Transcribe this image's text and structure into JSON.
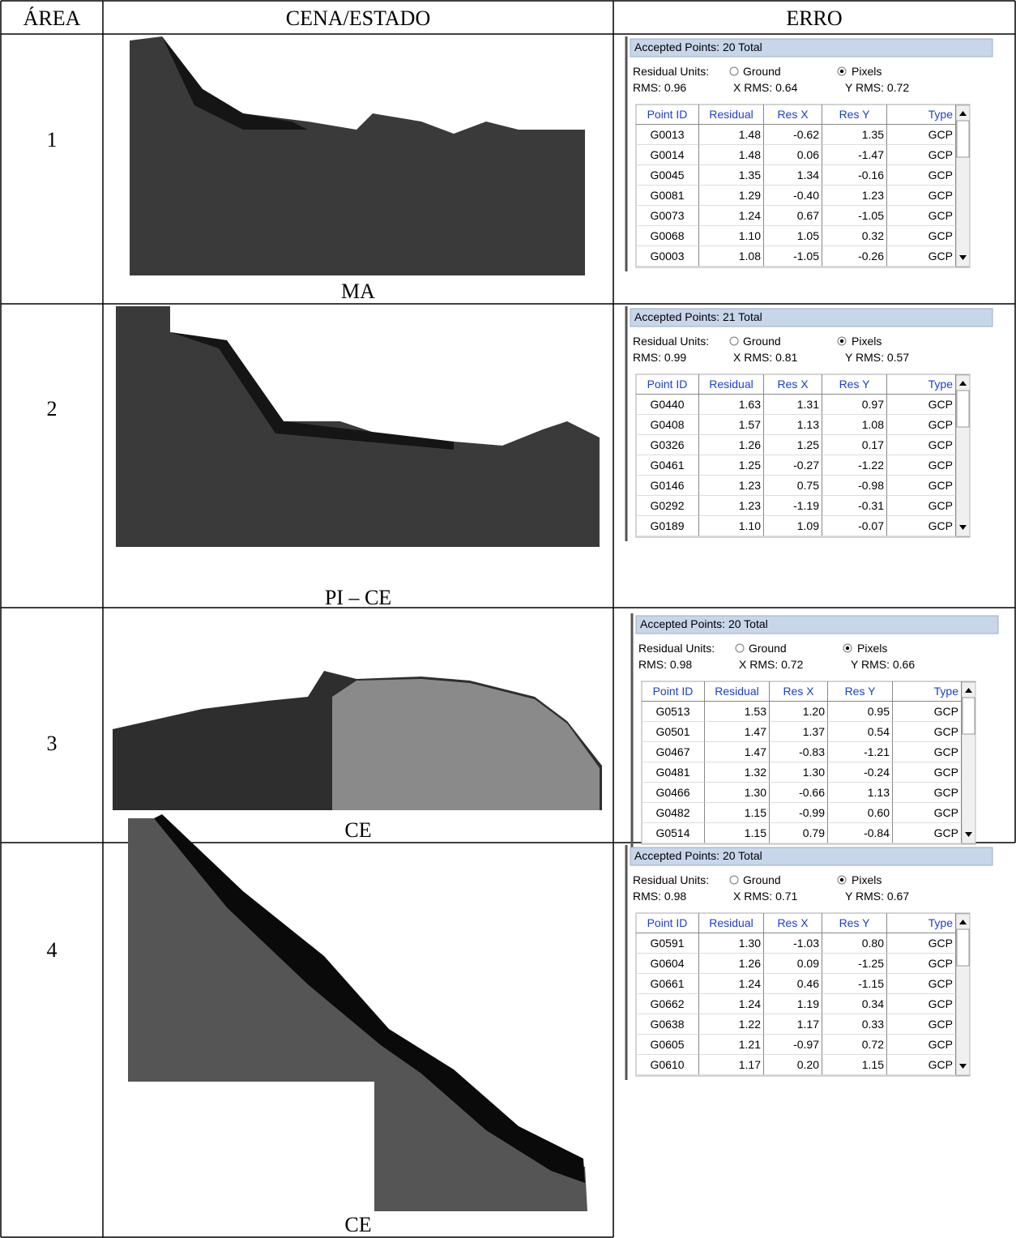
{
  "header": {
    "columns": [
      "ÁREA",
      "CENA/ESTADO",
      "ERRO"
    ]
  },
  "panel_labels": {
    "residual_units": "Residual Units:",
    "ground": "Ground",
    "pixels": "Pixels",
    "columns": [
      "Point ID",
      "Residual",
      "Res X",
      "Res Y",
      "Type"
    ]
  },
  "rows": [
    {
      "area": "1",
      "state": "MA",
      "panel": {
        "accepted": "Accepted Points: 20 Total",
        "rms": "RMS: 0.96",
        "x_rms": "X RMS: 0.64",
        "y_rms": "Y RMS: 0.72",
        "points": [
          [
            "G0013",
            "1.48",
            "-0.62",
            "1.35",
            "GCP"
          ],
          [
            "G0014",
            "1.48",
            "0.06",
            "-1.47",
            "GCP"
          ],
          [
            "G0045",
            "1.35",
            "1.34",
            "-0.16",
            "GCP"
          ],
          [
            "G0081",
            "1.29",
            "-0.40",
            "1.23",
            "GCP"
          ],
          [
            "G0073",
            "1.24",
            "0.67",
            "-1.05",
            "GCP"
          ],
          [
            "G0068",
            "1.10",
            "1.05",
            "0.32",
            "GCP"
          ],
          [
            "G0003",
            "1.08",
            "-1.05",
            "-0.26",
            "GCP"
          ]
        ]
      }
    },
    {
      "area": "2",
      "state": "PI – CE",
      "panel": {
        "accepted": "Accepted Points: 21 Total",
        "rms": "RMS: 0.99",
        "x_rms": "X RMS: 0.81",
        "y_rms": "Y RMS: 0.57",
        "points": [
          [
            "G0440",
            "1.63",
            "1.31",
            "0.97",
            "GCP"
          ],
          [
            "G0408",
            "1.57",
            "1.13",
            "1.08",
            "GCP"
          ],
          [
            "G0326",
            "1.26",
            "1.25",
            "0.17",
            "GCP"
          ],
          [
            "G0461",
            "1.25",
            "-0.27",
            "-1.22",
            "GCP"
          ],
          [
            "G0146",
            "1.23",
            "0.75",
            "-0.98",
            "GCP"
          ],
          [
            "G0292",
            "1.23",
            "-1.19",
            "-0.31",
            "GCP"
          ],
          [
            "G0189",
            "1.10",
            "1.09",
            "-0.07",
            "GCP"
          ]
        ]
      }
    },
    {
      "area": "3",
      "state": "CE",
      "panel": {
        "accepted": "Accepted Points: 20 Total",
        "rms": "RMS: 0.98",
        "x_rms": "X RMS: 0.72",
        "y_rms": "Y RMS: 0.66",
        "points": [
          [
            "G0513",
            "1.53",
            "1.20",
            "0.95",
            "GCP"
          ],
          [
            "G0501",
            "1.47",
            "1.37",
            "0.54",
            "GCP"
          ],
          [
            "G0467",
            "1.47",
            "-0.83",
            "-1.21",
            "GCP"
          ],
          [
            "G0481",
            "1.32",
            "1.30",
            "-0.24",
            "GCP"
          ],
          [
            "G0466",
            "1.30",
            "-0.66",
            "1.13",
            "GCP"
          ],
          [
            "G0482",
            "1.15",
            "-0.99",
            "0.60",
            "GCP"
          ],
          [
            "G0514",
            "1.15",
            "0.79",
            "-0.84",
            "GCP"
          ]
        ]
      }
    },
    {
      "area": "4",
      "state": "CE",
      "panel": {
        "accepted": "Accepted Points: 20 Total",
        "rms": "RMS: 0.98",
        "x_rms": "X RMS: 0.71",
        "y_rms": "Y RMS: 0.67",
        "points": [
          [
            "G0591",
            "1.30",
            "-1.03",
            "0.80",
            "GCP"
          ],
          [
            "G0604",
            "1.26",
            "0.09",
            "-1.25",
            "GCP"
          ],
          [
            "G0661",
            "1.24",
            "0.46",
            "-1.15",
            "GCP"
          ],
          [
            "G0662",
            "1.24",
            "1.19",
            "0.34",
            "GCP"
          ],
          [
            "G0638",
            "1.22",
            "1.17",
            "0.33",
            "GCP"
          ],
          [
            "G0605",
            "1.21",
            "-0.97",
            "0.72",
            "GCP"
          ],
          [
            "G0610",
            "1.17",
            "0.20",
            "1.15",
            "GCP"
          ]
        ]
      }
    }
  ]
}
